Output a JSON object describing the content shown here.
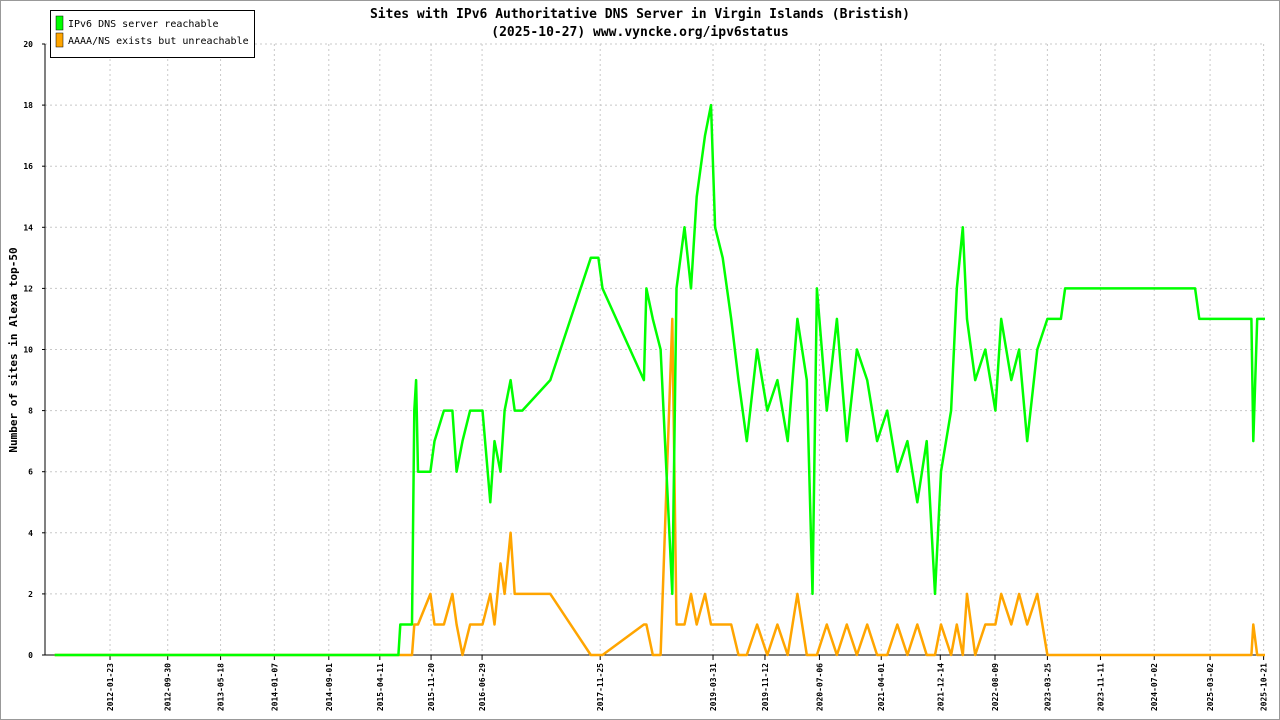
{
  "chart_data": {
    "type": "line",
    "title": "Sites with IPv6 Authoritative DNS Server in Virgin Islands (Bristish)",
    "subtitle": "(2025-10-27) www.vyncke.org/ipv6status",
    "y_label": "Number of sites in Alexa top-50",
    "x": [
      "2011-05-27",
      "2015-07-01",
      "2015-07-09",
      "2015-08-29",
      "2015-09-08",
      "2015-09-16",
      "2015-09-24",
      "2015-11-17",
      "2015-12-05",
      "2016-01-15",
      "2016-02-21",
      "2016-03-10",
      "2016-04-05",
      "2016-05-08",
      "2016-07-01",
      "2016-08-04",
      "2016-08-22",
      "2016-09-17",
      "2016-10-05",
      "2016-10-31",
      "2016-11-18",
      "2016-12-21",
      "2017-04-22",
      "2017-10-15",
      "2017-11-17",
      "2017-12-05",
      "2018-06-03",
      "2018-06-14",
      "2018-07-12",
      "2018-08-15",
      "2018-10-05",
      "2018-10-23",
      "2018-11-27",
      "2018-12-25",
      "2019-01-19",
      "2019-02-24",
      "2019-03-22",
      "2019-04-09",
      "2019-05-12",
      "2019-06-18",
      "2019-07-20",
      "2019-08-25",
      "2019-10-09",
      "2019-11-22",
      "2020-01-05",
      "2020-02-19",
      "2020-04-01",
      "2020-05-12",
      "2020-06-06",
      "2020-06-25",
      "2020-08-07",
      "2020-09-20",
      "2020-11-02",
      "2020-12-16",
      "2021-01-30",
      "2021-03-14",
      "2021-04-27",
      "2021-06-10",
      "2021-07-24",
      "2021-09-05",
      "2021-10-16",
      "2021-11-21",
      "2021-12-17",
      "2022-01-30",
      "2022-02-24",
      "2022-03-22",
      "2022-04-09",
      "2022-05-15",
      "2022-06-28",
      "2022-08-11",
      "2022-09-05",
      "2022-10-19",
      "2022-11-22",
      "2022-12-27",
      "2023-02-09",
      "2023-03-25",
      "2023-05-23",
      "2023-06-10",
      "2024-12-27",
      "2025-01-14",
      "2025-08-29",
      "2025-09-06",
      "2025-09-23",
      "2025-10-27"
    ],
    "series": [
      {
        "name": "IPv6 DNS server reachable",
        "color": "#00ff00",
        "values": [
          0,
          0,
          1,
          1,
          8,
          9,
          6,
          6,
          7,
          8,
          8,
          6,
          7,
          8,
          8,
          5,
          7,
          6,
          8,
          9,
          8,
          8,
          9,
          13,
          13,
          12,
          9,
          12,
          11,
          10,
          2,
          12,
          14,
          12,
          15,
          17,
          18,
          14,
          13,
          11,
          9,
          7,
          10,
          8,
          9,
          7,
          11,
          9,
          2,
          12,
          8,
          11,
          7,
          10,
          9,
          7,
          8,
          6,
          7,
          5,
          7,
          2,
          6,
          8,
          12,
          14,
          11,
          9,
          10,
          8,
          11,
          9,
          10,
          7,
          10,
          11,
          11,
          12,
          12,
          11,
          11,
          7,
          11,
          11
        ]
      },
      {
        "name": "AAAA/NS exists but unreachable",
        "color": "#ffa500",
        "values": [
          0,
          0,
          0,
          0,
          1,
          1,
          1,
          2,
          1,
          1,
          2,
          1,
          0,
          1,
          1,
          2,
          1,
          3,
          2,
          4,
          2,
          2,
          2,
          0,
          0,
          0,
          1,
          1,
          0,
          0,
          11,
          1,
          1,
          2,
          1,
          2,
          1,
          1,
          1,
          1,
          0,
          0,
          1,
          0,
          1,
          0,
          2,
          0,
          0,
          0,
          1,
          0,
          1,
          0,
          1,
          0,
          0,
          1,
          0,
          1,
          0,
          0,
          1,
          0,
          1,
          0,
          2,
          0,
          1,
          1,
          2,
          1,
          2,
          1,
          2,
          0,
          0,
          0,
          0,
          0,
          0,
          1,
          0,
          0
        ]
      }
    ],
    "xlim": [
      "2011-04-15",
      "2025-10-27"
    ],
    "xticks": [
      "2012-01-23",
      "2012-09-30",
      "2013-05-18",
      "2014-01-07",
      "2014-09-01",
      "2015-04-11",
      "2015-11-20",
      "2016-06-29",
      "2017-11-25",
      "2019-03-31",
      "2019-11-12",
      "2020-07-06",
      "2021-04-01",
      "2021-12-14",
      "2022-08-09",
      "2023-03-25",
      "2023-11-11",
      "2024-07-02",
      "2025-03-02",
      "2025-10-21"
    ],
    "ylim": [
      0,
      20
    ],
    "yticks": [
      0,
      2,
      4,
      6,
      8,
      10,
      12,
      14,
      16,
      18,
      20
    ],
    "grid": true,
    "legend": "top-left"
  }
}
